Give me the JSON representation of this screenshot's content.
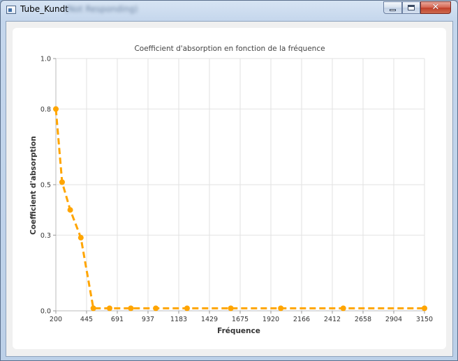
{
  "window": {
    "title": "Tube_Kundt",
    "title_suffix": "(Not Responding)"
  },
  "chart_data": {
    "type": "line",
    "title": "Coefficient d'absorption en fonction de la fréquence",
    "xlabel": "Fréquence",
    "ylabel": "Coefficient d'absorption",
    "xlim": [
      200,
      3150
    ],
    "ylim": [
      0.0,
      1.0
    ],
    "x_ticks": [
      "200",
      "445",
      "691",
      "937",
      "1183",
      "1429",
      "1675",
      "1920",
      "2166",
      "2412",
      "2658",
      "2904",
      "3150"
    ],
    "y_ticks": [
      "0.0",
      "0.3",
      "0.5",
      "0.8",
      "1.0"
    ],
    "grid": true,
    "legend": "none",
    "series": [
      {
        "color": "#ffa500",
        "line_style": "dashed",
        "marker": "circle",
        "x": [
          200,
          250,
          315,
          400,
          500,
          630,
          800,
          1000,
          1250,
          1600,
          2000,
          2500,
          3150
        ],
        "y": [
          0.8,
          0.51,
          0.4,
          0.29,
          0.01,
          0.01,
          0.01,
          0.01,
          0.01,
          0.01,
          0.01,
          0.01,
          0.01
        ]
      }
    ]
  }
}
